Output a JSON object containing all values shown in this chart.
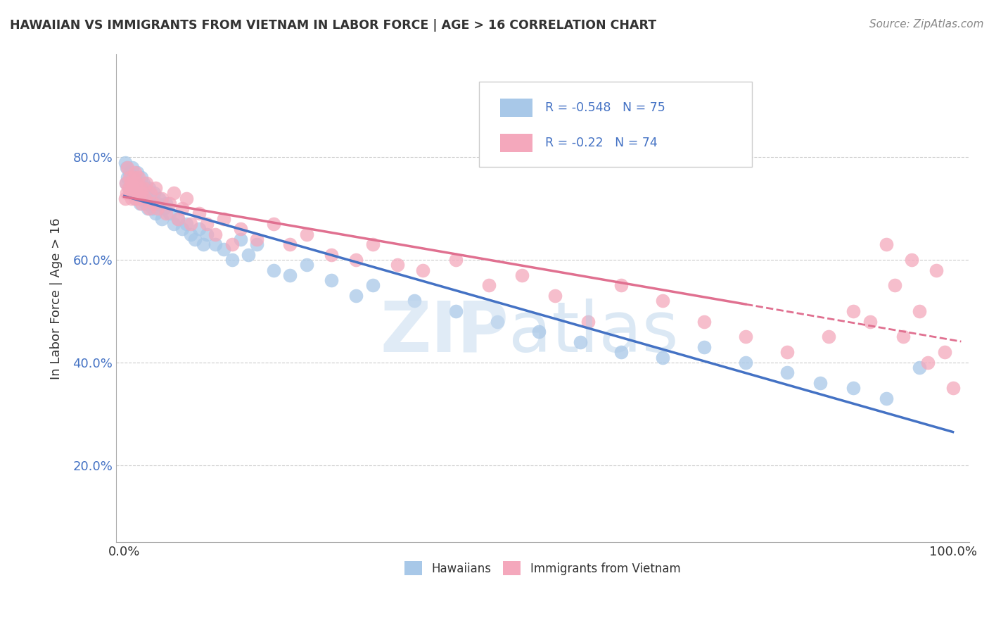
{
  "title": "HAWAIIAN VS IMMIGRANTS FROM VIETNAM IN LABOR FORCE | AGE > 16 CORRELATION CHART",
  "source": "Source: ZipAtlas.com",
  "ylabel": "In Labor Force | Age > 16",
  "legend_hawaiians": "Hawaiians",
  "legend_vietnam": "Immigrants from Vietnam",
  "r_hawaiians": -0.548,
  "n_hawaiians": 75,
  "r_vietnam": -0.22,
  "n_vietnam": 74,
  "color_hawaiians": "#a8c8e8",
  "color_vietnam": "#f4a8bc",
  "color_line_hawaiians": "#4472c4",
  "color_line_vietnam": "#e07090",
  "bg_color": "#ffffff",
  "xlim": [
    -1,
    102
  ],
  "ylim": [
    5,
    100
  ],
  "ytick_vals": [
    20,
    40,
    60,
    80
  ],
  "ytick_labels": [
    "20.0%",
    "40.0%",
    "60.0%",
    "80.0%"
  ],
  "xtick_vals": [
    0,
    100
  ],
  "xtick_labels": [
    "0.0%",
    "100.0%"
  ],
  "hawaii_x": [
    0.1,
    0.2,
    0.3,
    0.4,
    0.5,
    0.6,
    0.7,
    0.8,
    0.9,
    1.0,
    1.1,
    1.2,
    1.3,
    1.4,
    1.5,
    1.6,
    1.7,
    1.8,
    1.9,
    2.0,
    2.1,
    2.2,
    2.3,
    2.4,
    2.5,
    2.6,
    2.7,
    2.8,
    2.9,
    3.0,
    3.2,
    3.4,
    3.6,
    3.8,
    4.0,
    4.2,
    4.5,
    4.8,
    5.0,
    5.5,
    6.0,
    6.5,
    7.0,
    7.5,
    8.0,
    8.5,
    9.0,
    9.5,
    10.0,
    11.0,
    12.0,
    13.0,
    14.0,
    15.0,
    16.0,
    18.0,
    20.0,
    22.0,
    25.0,
    28.0,
    30.0,
    35.0,
    40.0,
    45.0,
    50.0,
    55.0,
    60.0,
    65.0,
    70.0,
    75.0,
    80.0,
    84.0,
    88.0,
    92.0,
    96.0
  ],
  "hawaii_y": [
    79,
    75,
    78,
    76,
    74,
    77,
    73,
    76,
    75,
    78,
    74,
    76,
    72,
    75,
    74,
    77,
    73,
    75,
    71,
    74,
    76,
    73,
    75,
    72,
    74,
    71,
    73,
    70,
    72,
    74,
    71,
    70,
    73,
    69,
    71,
    72,
    68,
    70,
    71,
    69,
    67,
    68,
    66,
    67,
    65,
    64,
    66,
    63,
    65,
    63,
    62,
    60,
    64,
    61,
    63,
    58,
    57,
    59,
    56,
    53,
    55,
    52,
    50,
    48,
    46,
    44,
    42,
    41,
    43,
    40,
    38,
    36,
    35,
    33,
    39
  ],
  "vietnam_x": [
    0.1,
    0.2,
    0.3,
    0.4,
    0.5,
    0.6,
    0.7,
    0.8,
    0.9,
    1.0,
    1.1,
    1.2,
    1.3,
    1.4,
    1.5,
    1.6,
    1.7,
    1.8,
    1.9,
    2.0,
    2.1,
    2.3,
    2.5,
    2.7,
    3.0,
    3.2,
    3.5,
    3.8,
    4.0,
    4.5,
    5.0,
    5.5,
    6.0,
    6.5,
    7.0,
    7.5,
    8.0,
    9.0,
    10.0,
    11.0,
    12.0,
    13.0,
    14.0,
    16.0,
    18.0,
    20.0,
    22.0,
    25.0,
    28.0,
    30.0,
    33.0,
    36.0,
    40.0,
    44.0,
    48.0,
    52.0,
    56.0,
    60.0,
    65.0,
    70.0,
    75.0,
    80.0,
    85.0,
    88.0,
    90.0,
    92.0,
    93.0,
    94.0,
    95.0,
    96.0,
    97.0,
    98.0,
    99.0,
    100.0
  ],
  "vietnam_y": [
    72,
    75,
    73,
    78,
    74,
    76,
    73,
    75,
    72,
    74,
    76,
    73,
    77,
    72,
    75,
    73,
    76,
    72,
    74,
    73,
    71,
    74,
    72,
    75,
    70,
    73,
    71,
    74,
    70,
    72,
    69,
    71,
    73,
    68,
    70,
    72,
    67,
    69,
    67,
    65,
    68,
    63,
    66,
    64,
    67,
    63,
    65,
    61,
    60,
    63,
    59,
    58,
    60,
    55,
    57,
    53,
    48,
    55,
    52,
    48,
    45,
    42,
    45,
    50,
    48,
    63,
    55,
    45,
    60,
    50,
    40,
    58,
    42,
    35
  ]
}
